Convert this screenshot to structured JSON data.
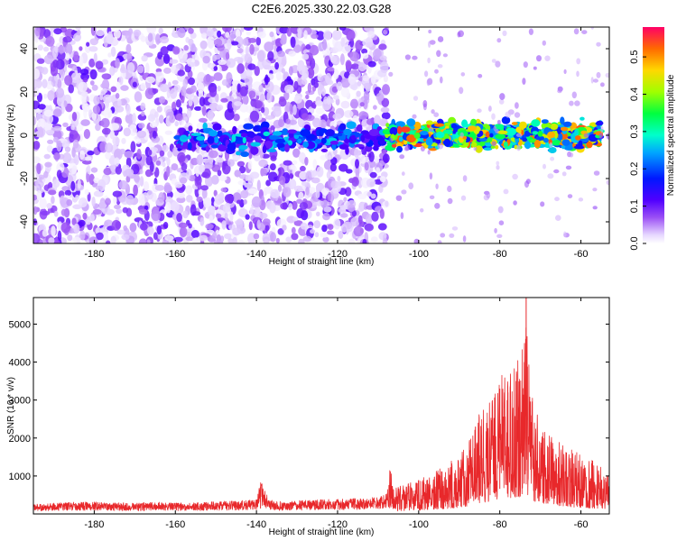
{
  "title": "C2E6.2025.330.22.03.G28",
  "chart_data": [
    {
      "type": "heatmap",
      "xlabel": "Height of straight line (km)",
      "ylabel": "Frequency (Hz)",
      "xlim": [
        -195,
        -53
      ],
      "ylim": [
        -50,
        50
      ],
      "xticks": [
        -180,
        -160,
        -140,
        -120,
        -100,
        -80,
        -60
      ],
      "yticks": [
        -40,
        -20,
        0,
        20,
        40
      ],
      "colorbar": {
        "label": "Normalized spectral amplitude",
        "range": [
          0.0,
          0.58
        ],
        "ticks": [
          0.0,
          0.1,
          0.2,
          0.3,
          0.4,
          0.5
        ],
        "tick_labels": [
          "0.0",
          "0.1",
          "0.2",
          "0.3",
          "0.4",
          "0.5"
        ]
      },
      "description_regions": [
        {
          "x_range": [
            -195,
            -108
          ],
          "freq_range": [
            -50,
            50
          ],
          "amplitude": [
            0.02,
            0.12
          ]
        },
        {
          "x_range": [
            -160,
            -108
          ],
          "freq_range": [
            -10,
            6
          ],
          "amplitude": [
            0.1,
            0.28
          ]
        },
        {
          "x_range": [
            -108,
            -55
          ],
          "freq_range": [
            -8,
            8
          ],
          "amplitude": [
            0.15,
            0.55
          ]
        }
      ]
    },
    {
      "type": "line",
      "xlabel": "Height of straight line (km)",
      "ylabel": "SNR (10 * v/v)",
      "xlim": [
        -195,
        -53
      ],
      "ylim": [
        0,
        5700
      ],
      "xticks": [
        -180,
        -160,
        -140,
        -120,
        -100,
        -80,
        -60
      ],
      "yticks": [
        1000,
        2000,
        3000,
        4000,
        5000
      ],
      "series": [
        {
          "name": "SNR",
          "color": "#e8282b",
          "x": [
            -195,
            -190,
            -185,
            -180,
            -175,
            -170,
            -165,
            -160,
            -155,
            -150,
            -145,
            -140,
            -139,
            -137,
            -135,
            -130,
            -125,
            -120,
            -115,
            -110,
            -108,
            -107,
            -106,
            -104,
            -102,
            -100,
            -98,
            -96,
            -94,
            -92,
            -90,
            -88,
            -86,
            -84,
            -82,
            -80,
            -78,
            -76,
            -74,
            -73.5,
            -73,
            -72,
            -70,
            -68,
            -66,
            -64,
            -62,
            -60,
            -58,
            -56,
            -54
          ],
          "values": [
            220,
            230,
            250,
            260,
            240,
            230,
            250,
            230,
            240,
            260,
            280,
            300,
            720,
            320,
            260,
            280,
            300,
            310,
            330,
            360,
            450,
            1120,
            600,
            700,
            750,
            800,
            900,
            1000,
            1100,
            1250,
            1400,
            1600,
            2300,
            2500,
            2700,
            3300,
            3200,
            3500,
            4000,
            5700,
            3800,
            2900,
            2400,
            2100,
            1800,
            1600,
            1500,
            1400,
            1300,
            1200,
            1100
          ]
        }
      ]
    }
  ]
}
